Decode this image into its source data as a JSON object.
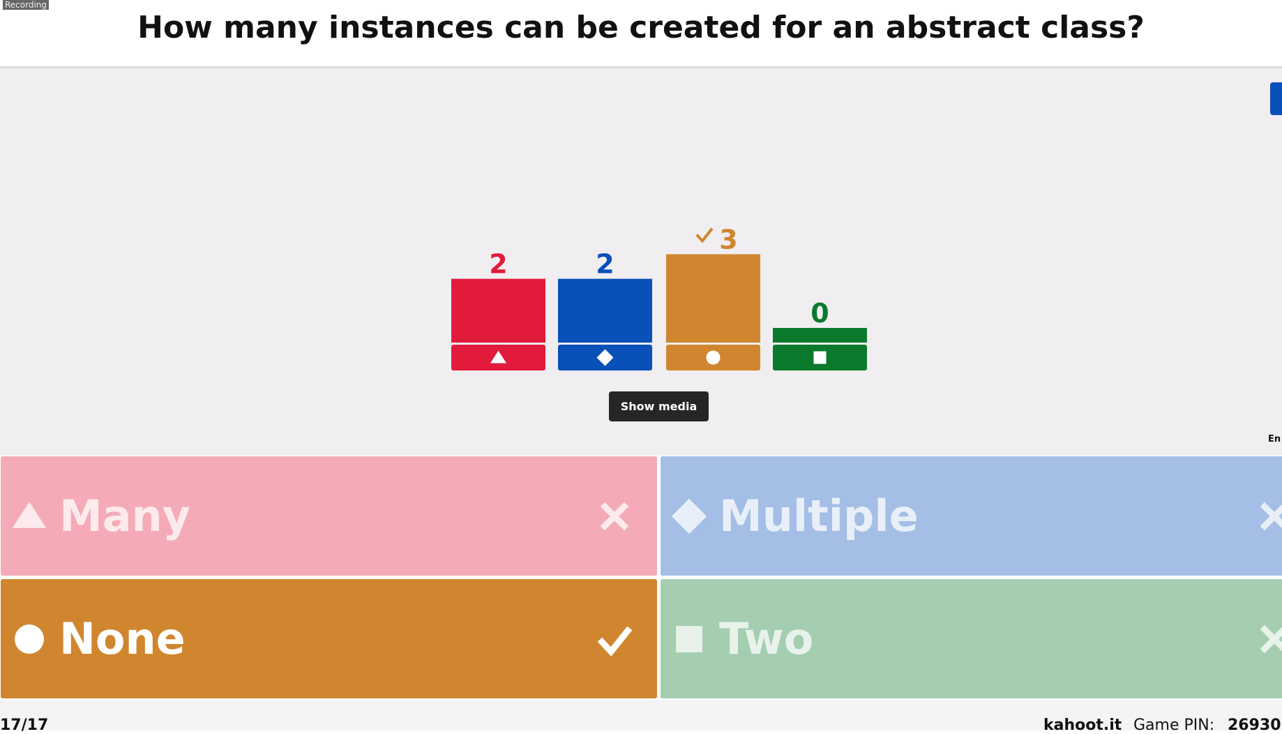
{
  "header": {
    "recording": "Recording",
    "question": "How many instances can be created for an abstract class?"
  },
  "results": {
    "answers": [
      {
        "text": "Many",
        "count": 2,
        "color": "#e21b3c",
        "shape": "triangle",
        "correct": false
      },
      {
        "text": "Multiple",
        "count": 2,
        "color": "#0950b9",
        "shape": "diamond",
        "correct": false
      },
      {
        "text": "None",
        "count": 3,
        "color": "#d0862f",
        "shape": "circle",
        "correct": true
      },
      {
        "text": "Two",
        "count": 0,
        "color": "#0b7a2c",
        "shape": "square",
        "correct": false
      }
    ],
    "show_media": "Show media",
    "side_label": "En"
  },
  "footer": {
    "progress": "17/17",
    "site": "kahoot.it",
    "pin_label": "Game PIN:",
    "pin": "26930"
  }
}
